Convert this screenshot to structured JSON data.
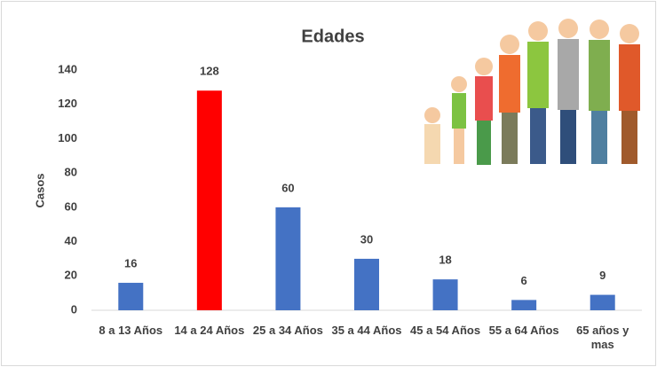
{
  "chart_data": {
    "type": "bar",
    "title": "Edades",
    "y_label": "Casos",
    "categories": [
      "8 a 13 Años",
      "14 a 24 Años",
      "25 a 34 Años",
      "35 a 44 Años",
      "45 a 54 Años",
      "55 a 64 Años",
      "65 años y mas"
    ],
    "values": [
      16,
      128,
      60,
      30,
      18,
      6,
      9
    ],
    "colors": [
      "#4472c4",
      "#ff0000",
      "#4472c4",
      "#4472c4",
      "#4472c4",
      "#4472c4",
      "#4472c4"
    ],
    "ylim": [
      0,
      140
    ],
    "yticks": [
      0,
      20,
      40,
      60,
      80,
      100,
      120,
      140
    ],
    "grid": false
  }
}
